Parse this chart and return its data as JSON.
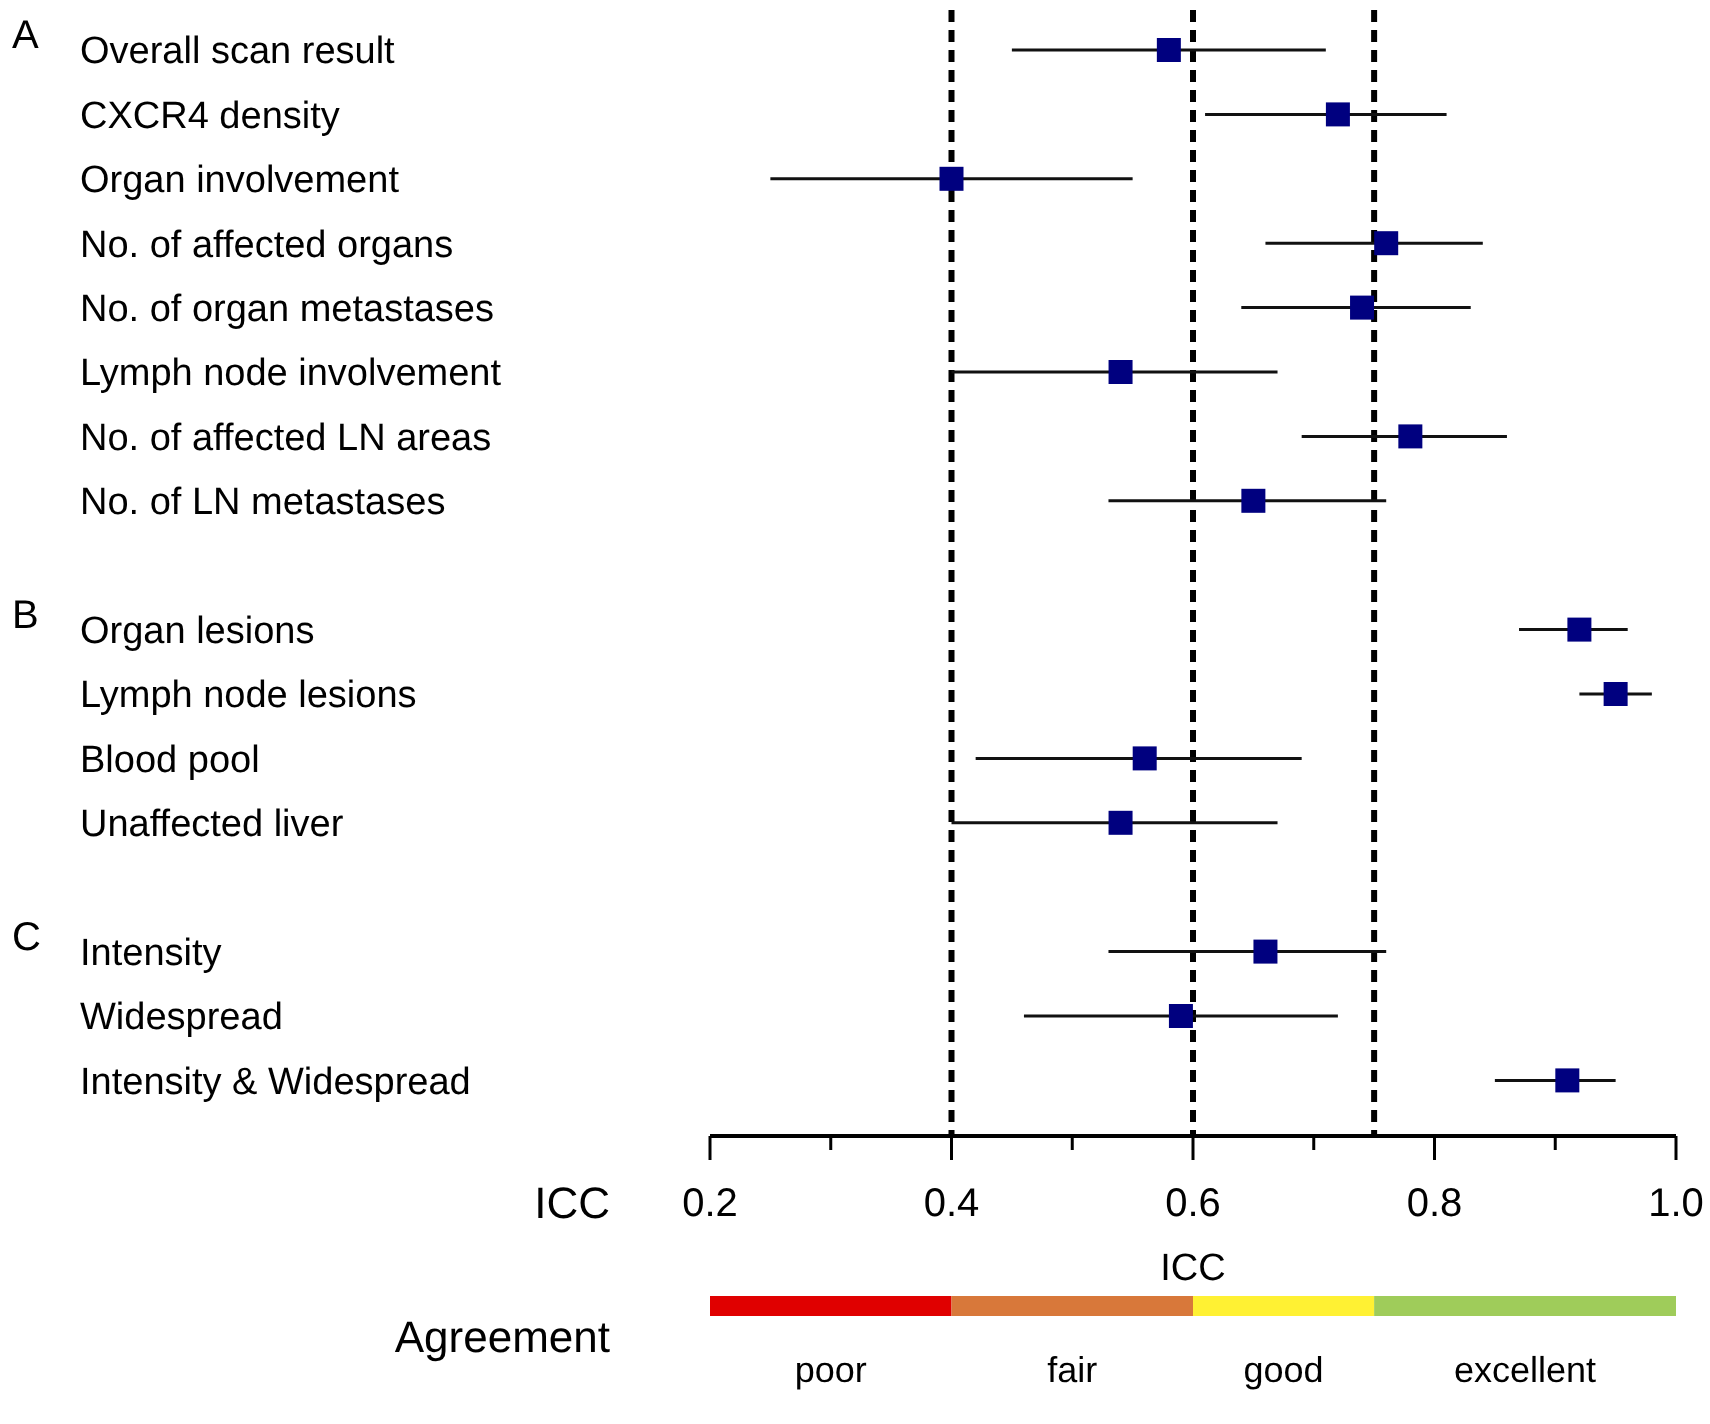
{
  "chart_data": {
    "type": "scatter",
    "orientation": "horizontal",
    "marker": "square",
    "grid": false,
    "categories": [
      "Overall scan result",
      "CXCR4 density",
      "Organ involvement",
      "No. of affected organs",
      "No. of organ metastases",
      "Lymph node involvement",
      "No. of affected LN areas",
      "No. of LN metastases",
      null,
      "Organ lesions",
      "Lymph node lesions",
      "Blood pool",
      "Unaffected liver",
      null,
      "Intensity",
      "Widespread",
      "Intensity & Widespread"
    ],
    "series": [
      {
        "color": "#00007f",
        "values": [
          0.58,
          0.72,
          0.4,
          0.76,
          0.74,
          0.54,
          0.78,
          0.65,
          null,
          0.92,
          0.95,
          0.56,
          0.54,
          null,
          0.66,
          0.59,
          0.91
        ],
        "errors": [
          [
            0.45,
            0.71
          ],
          [
            0.61,
            0.81
          ],
          [
            0.25,
            0.55
          ],
          [
            0.66,
            0.84
          ],
          [
            0.64,
            0.83
          ],
          [
            0.4,
            0.67
          ],
          [
            0.69,
            0.86
          ],
          [
            0.53,
            0.76
          ],
          null,
          [
            0.87,
            0.96
          ],
          [
            0.92,
            0.98
          ],
          [
            0.42,
            0.69
          ],
          [
            0.4,
            0.67
          ],
          null,
          [
            0.53,
            0.76
          ],
          [
            0.46,
            0.72
          ],
          [
            0.85,
            0.95
          ]
        ]
      }
    ],
    "xlabel": "ICC",
    "xlim": [
      0.2,
      1.0
    ],
    "xticks": [
      0.2,
      {
        "value": 0.3,
        "label": null
      },
      0.4,
      {
        "value": 0.5,
        "label": null
      },
      0.6,
      {
        "value": 0.7,
        "label": null
      },
      0.8,
      {
        "value": 0.9,
        "label": null
      },
      {
        "value": 1.0,
        "label": "1.0"
      }
    ],
    "ref_lines": [
      {
        "axis": "x",
        "value": 0.4,
        "line_style": "dashed",
        "color": "#000000"
      },
      {
        "axis": "x",
        "value": 0.6,
        "line_style": "dashed",
        "color": "#000000"
      },
      {
        "axis": "x",
        "value": 0.75,
        "line_style": "dashed",
        "color": "#000000"
      }
    ],
    "legend_title": "ICC",
    "annotations": [
      "A",
      "B",
      "C",
      "poor",
      "fair",
      "good",
      "excellent",
      "Agreement"
    ]
  }
}
